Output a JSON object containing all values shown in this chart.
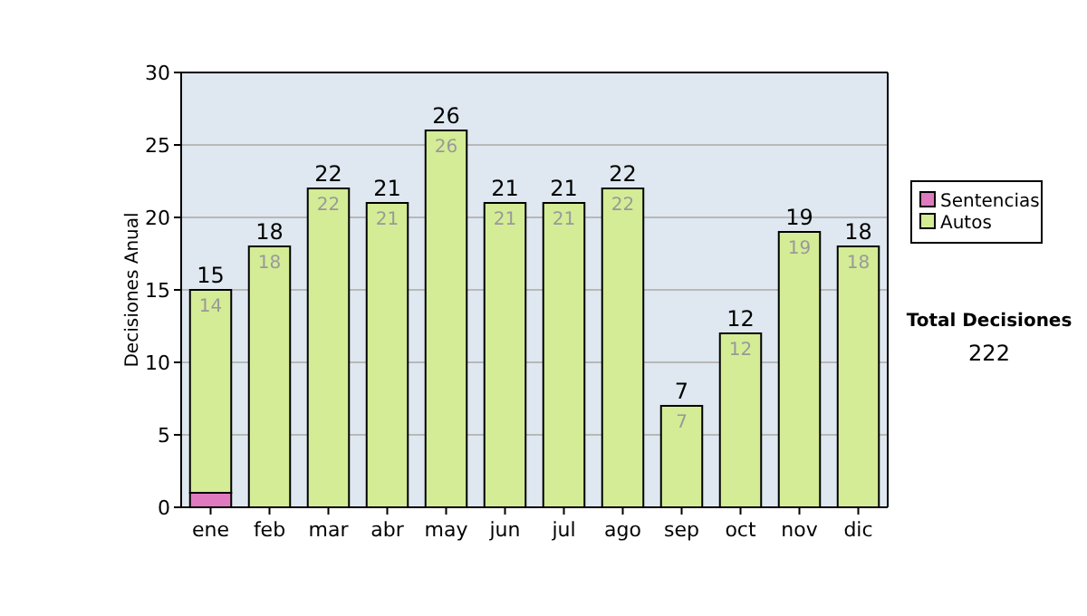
{
  "chart_data": {
    "type": "bar",
    "stacked": true,
    "ylabel": "Decisiones Anual",
    "categories": [
      "ene",
      "feb",
      "mar",
      "abr",
      "may",
      "jun",
      "jul",
      "ago",
      "sep",
      "oct",
      "nov",
      "dic"
    ],
    "series": [
      {
        "name": "Sentencias",
        "color": "#e07ac0",
        "values": [
          1,
          0,
          0,
          0,
          0,
          0,
          0,
          0,
          0,
          0,
          0,
          0
        ]
      },
      {
        "name": "Autos",
        "color": "#d4ec96",
        "values": [
          14,
          18,
          22,
          21,
          26,
          21,
          21,
          22,
          7,
          12,
          19,
          18
        ],
        "value_labels": [
          "14",
          "18",
          "22",
          "21",
          "26",
          "21",
          "21",
          "22",
          "7",
          "12",
          "19",
          "18"
        ]
      }
    ],
    "totals": [
      "15",
      "18",
      "22",
      "21",
      "26",
      "21",
      "21",
      "22",
      "7",
      "12",
      "19",
      "18"
    ],
    "ylim": [
      0,
      30
    ],
    "yticks": [
      0,
      5,
      10,
      15,
      20,
      25,
      30
    ],
    "grid": "y",
    "legend": "right",
    "annotations": [
      "Total Decisiones",
      "222"
    ]
  }
}
